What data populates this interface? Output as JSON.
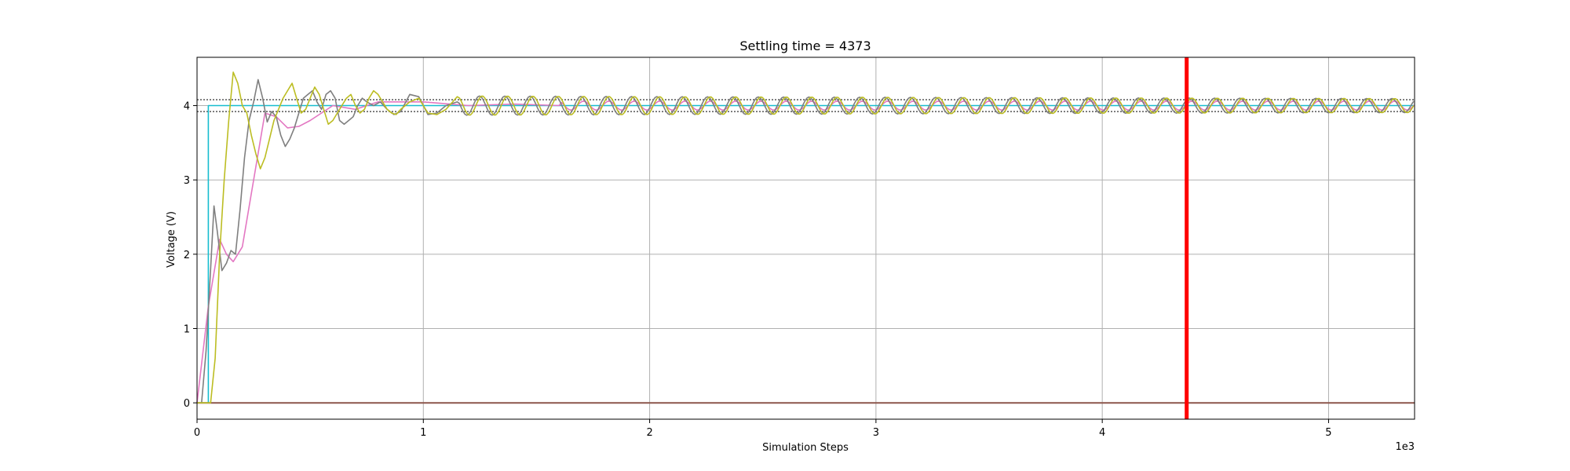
{
  "chart_data": {
    "type": "line",
    "title": "Settling time = 4373",
    "xlabel": "Simulation Steps",
    "ylabel": "Voltage (V)",
    "x_offset_label": "1e3",
    "xlim": [
      0,
      5380
    ],
    "ylim": [
      -0.22,
      4.65
    ],
    "xticks": [
      0,
      1000,
      2000,
      3000,
      4000,
      5000
    ],
    "xtick_labels": [
      "0",
      "1",
      "2",
      "3",
      "4",
      "5"
    ],
    "yticks": [
      0,
      1,
      2,
      3,
      4
    ],
    "ytick_labels": [
      "0",
      "1",
      "2",
      "3",
      "4"
    ],
    "grid": true,
    "settling_band": [
      3.92,
      4.08
    ],
    "settling_marker_x": 4373,
    "colors": {
      "setpoint": "#17becf",
      "response_a": "#bcbd22",
      "response_b": "#7f7f7f",
      "response_c": "#e377c2",
      "baseline": "#8c564b",
      "band": "#555555",
      "marker": "#ff0000"
    },
    "series": [
      {
        "key": "setpoint",
        "x": [
          0,
          50,
          50,
          5380
        ],
        "y": [
          0,
          0,
          4.0,
          4.0
        ]
      },
      {
        "key": "baseline",
        "x": [
          0,
          5380
        ],
        "y": [
          0,
          0
        ]
      },
      {
        "key": "response_c",
        "x": [
          0,
          50,
          100,
          130,
          160,
          200,
          250,
          300,
          350,
          400,
          450,
          500,
          600,
          700,
          800,
          900,
          1000,
          1200,
          1400,
          1600,
          2000,
          3000,
          4000,
          5380
        ],
        "y": [
          0,
          1.3,
          2.2,
          2.0,
          1.9,
          2.1,
          3.0,
          3.9,
          3.85,
          3.7,
          3.72,
          3.8,
          4.0,
          3.95,
          4.05,
          4.05,
          4.05,
          4.0,
          4.02,
          4.0,
          4.0,
          4.0,
          4.0,
          4.0
        ]
      },
      {
        "key": "response_b",
        "x": [
          0,
          20,
          40,
          60,
          75,
          90,
          110,
          130,
          150,
          170,
          190,
          210,
          230,
          250,
          270,
          290,
          310,
          330,
          350,
          370,
          390,
          410,
          430,
          450,
          470,
          490,
          510,
          530,
          550,
          570,
          590,
          610,
          630,
          650,
          670,
          690,
          710,
          730,
          750,
          780,
          810,
          840,
          870,
          900,
          940,
          980,
          1020,
          1060,
          1100,
          1150
        ],
        "y": [
          0,
          0,
          0.7,
          1.8,
          2.65,
          2.3,
          1.78,
          1.88,
          2.05,
          2.0,
          2.6,
          3.3,
          3.8,
          4.05,
          4.35,
          4.1,
          3.78,
          3.92,
          3.85,
          3.6,
          3.45,
          3.55,
          3.7,
          3.9,
          4.1,
          4.15,
          4.2,
          4.05,
          3.95,
          4.15,
          4.2,
          4.1,
          3.8,
          3.75,
          3.8,
          3.85,
          4.0,
          4.1,
          4.05,
          4.0,
          4.05,
          3.95,
          3.88,
          3.92,
          4.15,
          4.12,
          3.88,
          3.9,
          4.0,
          4.05
        ]
      },
      {
        "key": "response_a",
        "x": [
          0,
          60,
          80,
          100,
          120,
          140,
          160,
          180,
          200,
          220,
          240,
          260,
          280,
          300,
          320,
          340,
          360,
          380,
          400,
          420,
          440,
          460,
          480,
          500,
          520,
          540,
          560,
          580,
          600,
          620,
          640,
          660,
          680,
          700,
          720,
          740,
          760,
          780,
          800,
          820,
          840,
          860,
          880,
          900,
          940,
          980,
          1020,
          1060,
          1100,
          1150
        ],
        "y": [
          0,
          0,
          0.6,
          2.0,
          3.0,
          3.8,
          4.45,
          4.3,
          4.0,
          3.9,
          3.6,
          3.35,
          3.15,
          3.3,
          3.55,
          3.8,
          3.95,
          4.1,
          4.2,
          4.3,
          4.1,
          3.9,
          3.95,
          4.1,
          4.25,
          4.15,
          3.95,
          3.75,
          3.8,
          3.9,
          4.0,
          4.1,
          4.15,
          4.0,
          3.9,
          3.95,
          4.1,
          4.2,
          4.15,
          4.05,
          3.95,
          3.9,
          3.88,
          3.95,
          4.05,
          4.1,
          3.9,
          3.88,
          3.95,
          4.12
        ]
      }
    ]
  }
}
